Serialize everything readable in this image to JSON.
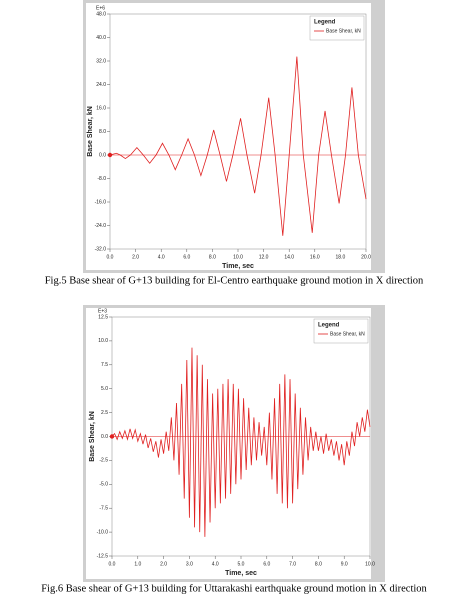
{
  "chart_data": [
    {
      "type": "line",
      "multiplier": "E+6",
      "xlabel": "Time, sec",
      "ylabel": "Base Shear, kN",
      "legend_title": "Legend",
      "caption": "Fig.5 Base shear of G+13 building for El-Centro earthquake ground motion in X direction",
      "xlim": [
        0,
        20
      ],
      "ylim": [
        -32,
        48
      ],
      "xticks": [
        {
          "value": 0,
          "label": "0.0"
        },
        {
          "value": 2,
          "label": "2.0"
        },
        {
          "value": 4,
          "label": "4.0"
        },
        {
          "value": 6,
          "label": "6.0"
        },
        {
          "value": 8,
          "label": "8.0"
        },
        {
          "value": 10,
          "label": "10.0"
        },
        {
          "value": 12,
          "label": "12.0"
        },
        {
          "value": 14,
          "label": "14.0"
        },
        {
          "value": 16,
          "label": "16.0"
        },
        {
          "value": 18,
          "label": "18.0"
        },
        {
          "value": 20,
          "label": "20.0"
        }
      ],
      "yticks": [
        {
          "value": -32,
          "label": "-32.0"
        },
        {
          "value": -24,
          "label": "-24.0"
        },
        {
          "value": -16,
          "label": "-16.0"
        },
        {
          "value": -8,
          "label": "-8.0"
        },
        {
          "value": 0,
          "label": "0.0"
        },
        {
          "value": 8,
          "label": "8.0"
        },
        {
          "value": 16,
          "label": "16.0"
        },
        {
          "value": 24,
          "label": "24.0"
        },
        {
          "value": 32,
          "label": "32.0"
        },
        {
          "value": 40,
          "label": "40.0"
        },
        {
          "value": 48,
          "label": "48.0"
        }
      ],
      "x": [
        0,
        0.5,
        0.8,
        1.2,
        1.6,
        2.1,
        2.6,
        3.1,
        3.6,
        4.1,
        4.6,
        5.1,
        5.6,
        6.1,
        6.6,
        7.1,
        7.6,
        8.1,
        8.6,
        9.1,
        9.6,
        10.2,
        10.7,
        11.3,
        11.8,
        12.4,
        12.9,
        13.5,
        14.0,
        14.6,
        15.1,
        15.8,
        16.3,
        16.8,
        17.3,
        17.9,
        18.4,
        18.9,
        19.4,
        20.0
      ],
      "series": [
        {
          "name": "Base Shear, kN",
          "color": "#e02020",
          "values": [
            0,
            0.6,
            0,
            -1.2,
            0,
            2.5,
            0,
            -2.8,
            0,
            4,
            0,
            -5,
            0,
            5.5,
            0,
            -7,
            0,
            8.5,
            0,
            -9,
            0,
            12.5,
            0,
            -13,
            0,
            19.5,
            0,
            -27.5,
            0,
            33.5,
            0,
            -26.5,
            0,
            15,
            0,
            -16.5,
            0,
            23,
            0,
            -15
          ]
        }
      ]
    },
    {
      "type": "line",
      "multiplier": "E+3",
      "xlabel": "Time, sec",
      "ylabel": "Base Shear, kN",
      "legend_title": "Legend",
      "caption": "Fig.6 Base shear of G+13 building for Uttarakashi earthquake ground motion in X direction",
      "xlim": [
        0,
        10
      ],
      "ylim": [
        -12.5,
        12.5
      ],
      "xticks": [
        {
          "value": 0,
          "label": "0.0"
        },
        {
          "value": 1,
          "label": "1.0"
        },
        {
          "value": 2,
          "label": "2.0"
        },
        {
          "value": 3,
          "label": "3.0"
        },
        {
          "value": 4,
          "label": "4.0"
        },
        {
          "value": 5,
          "label": "5.0"
        },
        {
          "value": 6,
          "label": "6.0"
        },
        {
          "value": 7,
          "label": "7.0"
        },
        {
          "value": 8,
          "label": "8.0"
        },
        {
          "value": 9,
          "label": "9.0"
        },
        {
          "value": 10,
          "label": "10.0"
        }
      ],
      "yticks": [
        -12.5,
        {
          "value": -10,
          "label": "-10.0"
        },
        -7.5,
        {
          "value": -5,
          "label": "-5.0"
        },
        -2.5,
        {
          "value": 0,
          "label": "0.0"
        },
        2.5,
        {
          "value": 5,
          "label": "5.0"
        },
        7.5,
        {
          "value": 10,
          "label": "10.0"
        },
        12.5
      ],
      "x": [
        0,
        0.1,
        0.2,
        0.3,
        0.4,
        0.5,
        0.6,
        0.7,
        0.8,
        0.9,
        1,
        1.1,
        1.2,
        1.3,
        1.4,
        1.5,
        1.6,
        1.7,
        1.8,
        1.9,
        2,
        2.1,
        2.2,
        2.3,
        2.4,
        2.5,
        2.6,
        2.7,
        2.8,
        2.9,
        3,
        3.1,
        3.2,
        3.3,
        3.4,
        3.5,
        3.6,
        3.7,
        3.8,
        3.9,
        4,
        4.1,
        4.2,
        4.3,
        4.4,
        4.5,
        4.6,
        4.7,
        4.8,
        4.9,
        5,
        5.1,
        5.2,
        5.3,
        5.4,
        5.5,
        5.6,
        5.7,
        5.8,
        5.9,
        6,
        6.1,
        6.2,
        6.3,
        6.4,
        6.5,
        6.6,
        6.7,
        6.8,
        6.9,
        7,
        7.1,
        7.2,
        7.3,
        7.4,
        7.5,
        7.6,
        7.7,
        7.8,
        7.9,
        8,
        8.1,
        8.2,
        8.3,
        8.4,
        8.5,
        8.6,
        8.7,
        8.8,
        8.9,
        9,
        9.1,
        9.2,
        9.3,
        9.4,
        9.5,
        9.6,
        9.7,
        9.8,
        9.9,
        10
      ],
      "series": [
        {
          "name": "Base Shear, kN",
          "color": "#e02020",
          "values": [
            0,
            0.3,
            -0.3,
            0.5,
            -0.2,
            0.6,
            -0.3,
            0.8,
            -0.2,
            0.7,
            -0.5,
            0.3,
            -0.8,
            0.2,
            -1.2,
            -0.2,
            -1.6,
            -0.5,
            -2.2,
            -0.3,
            -1.8,
            0.5,
            -1.5,
            2,
            -2.5,
            3.5,
            -4,
            5.5,
            -6.5,
            8,
            -8.5,
            9.3,
            -9.5,
            8.5,
            -10,
            7.5,
            -10.5,
            6,
            -9,
            4.5,
            -7.5,
            5,
            -7,
            5.5,
            -6.5,
            6,
            -6,
            5.5,
            -5,
            5,
            -4.5,
            4,
            -3.5,
            3,
            -3,
            2,
            -2.5,
            1.5,
            -2,
            1,
            -3,
            2.5,
            -4.5,
            4,
            -6,
            5.5,
            -7,
            6.5,
            -7.5,
            6,
            -7,
            4.5,
            -5.5,
            3,
            -4,
            2,
            -2.5,
            1,
            -1.5,
            0.5,
            -1.5,
            0,
            -1.8,
            0.3,
            -1.5,
            -0.3,
            -2,
            -0.5,
            -2.5,
            -0.8,
            -3,
            -0.5,
            -2,
            0.5,
            -1,
            1.5,
            0,
            2,
            0.5,
            2.8,
            1
          ]
        }
      ]
    }
  ]
}
